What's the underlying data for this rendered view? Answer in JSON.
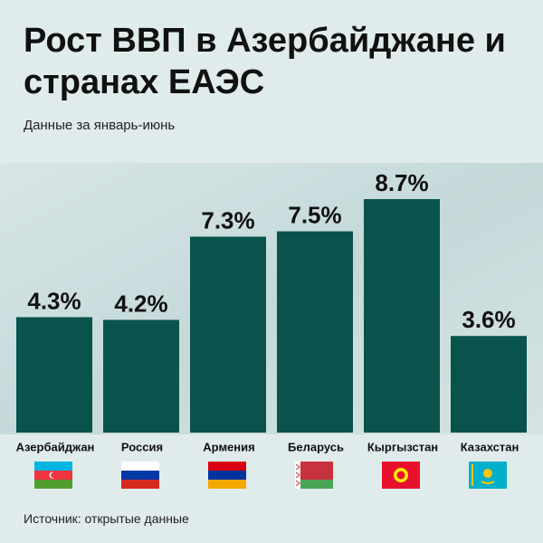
{
  "chart_data": {
    "type": "bar",
    "title": "Рост ВВП в Азербайджане и странах ЕАЭС",
    "subtitle": "Данные за январь-июнь",
    "source": "Источник: открытые данные",
    "categories": [
      "Азербайджан",
      "Россия",
      "Армения",
      "Беларусь",
      "Кыргызстан",
      "Казахстан"
    ],
    "values": [
      4.3,
      4.2,
      7.3,
      7.5,
      8.7,
      3.6
    ],
    "value_labels": [
      "4.3%",
      "4.2%",
      "7.3%",
      "7.5%",
      "8.7%",
      "3.6%"
    ],
    "color": "#0a524c"
  }
}
